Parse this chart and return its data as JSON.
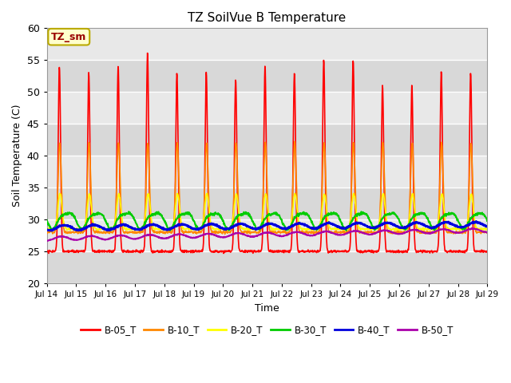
{
  "title": "TZ SoilVue B Temperature",
  "xlabel": "Time",
  "ylabel": "Soil Temperature (C)",
  "ylim": [
    20,
    60
  ],
  "bg_color": "#e8e8e8",
  "annotation_text": "TZ_sm",
  "annotation_bg": "#ffffcc",
  "annotation_border": "#bbaa00",
  "series_names": [
    "B-05_T",
    "B-10_T",
    "B-20_T",
    "B-30_T",
    "B-40_T",
    "B-50_T"
  ],
  "series_colors": [
    "#ff0000",
    "#ff8800",
    "#ffff00",
    "#00cc00",
    "#0000dd",
    "#aa00aa"
  ],
  "series_lw": [
    1.2,
    1.2,
    1.2,
    1.5,
    2.0,
    1.5
  ],
  "xtick_labels": [
    "Jul 14",
    "Jul 15",
    "Jul 16",
    "Jul 17",
    "Jul 18",
    "Jul 19",
    "Jul 20",
    "Jul 21",
    "Jul 22",
    "Jul 23",
    "Jul 24",
    "Jul 25",
    "Jul 26",
    "Jul 27",
    "Jul 28",
    "Jul 29"
  ],
  "ytick_labels": [
    20,
    25,
    30,
    35,
    40,
    45,
    50,
    55,
    60
  ],
  "n_days": 15,
  "pts_per_day": 96
}
